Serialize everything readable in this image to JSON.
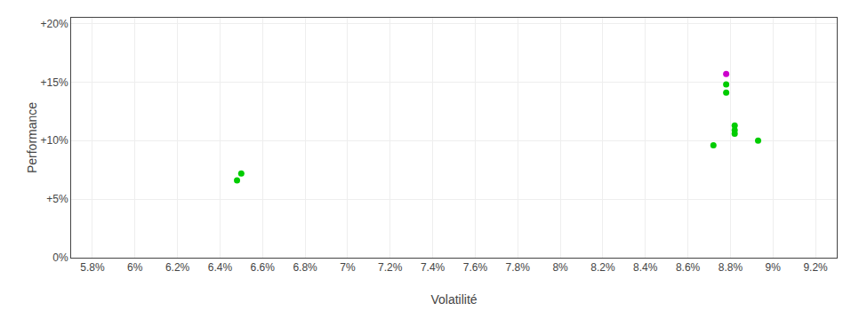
{
  "chart_data": {
    "type": "scatter",
    "xlabel": "Volatilité",
    "ylabel": "Performance",
    "xlim": [
      0.057,
      0.093
    ],
    "ylim": [
      0.0,
      0.205
    ],
    "xticks": [
      {
        "value": 0.058,
        "label": "5.8%"
      },
      {
        "value": 0.06,
        "label": "6%"
      },
      {
        "value": 0.062,
        "label": "6.2%"
      },
      {
        "value": 0.064,
        "label": "6.4%"
      },
      {
        "value": 0.066,
        "label": "6.6%"
      },
      {
        "value": 0.068,
        "label": "6.8%"
      },
      {
        "value": 0.07,
        "label": "7%"
      },
      {
        "value": 0.072,
        "label": "7.2%"
      },
      {
        "value": 0.074,
        "label": "7.4%"
      },
      {
        "value": 0.076,
        "label": "7.6%"
      },
      {
        "value": 0.078,
        "label": "7.8%"
      },
      {
        "value": 0.08,
        "label": "8%"
      },
      {
        "value": 0.082,
        "label": "8.2%"
      },
      {
        "value": 0.084,
        "label": "8.4%"
      },
      {
        "value": 0.086,
        "label": "8.6%"
      },
      {
        "value": 0.088,
        "label": "8.8%"
      },
      {
        "value": 0.09,
        "label": "9%"
      },
      {
        "value": 0.092,
        "label": "9.2%"
      }
    ],
    "yticks": [
      {
        "value": 0.0,
        "label": "0%"
      },
      {
        "value": 0.05,
        "label": "+5%"
      },
      {
        "value": 0.1,
        "label": "+10%"
      },
      {
        "value": 0.15,
        "label": "+15%"
      },
      {
        "value": 0.2,
        "label": "+20%"
      }
    ],
    "grid": true,
    "series": [
      {
        "color": "#00cc00",
        "x": [
          0.065,
          0.0648,
          0.0878,
          0.0878,
          0.0882,
          0.0882,
          0.0882,
          0.0872,
          0.0893
        ],
        "values": [
          0.072,
          0.066,
          0.148,
          0.141,
          0.113,
          0.109,
          0.106,
          0.096,
          0.1
        ]
      },
      {
        "color": "#cc00cc",
        "x": [
          0.0878
        ],
        "values": [
          0.157
        ]
      }
    ]
  }
}
